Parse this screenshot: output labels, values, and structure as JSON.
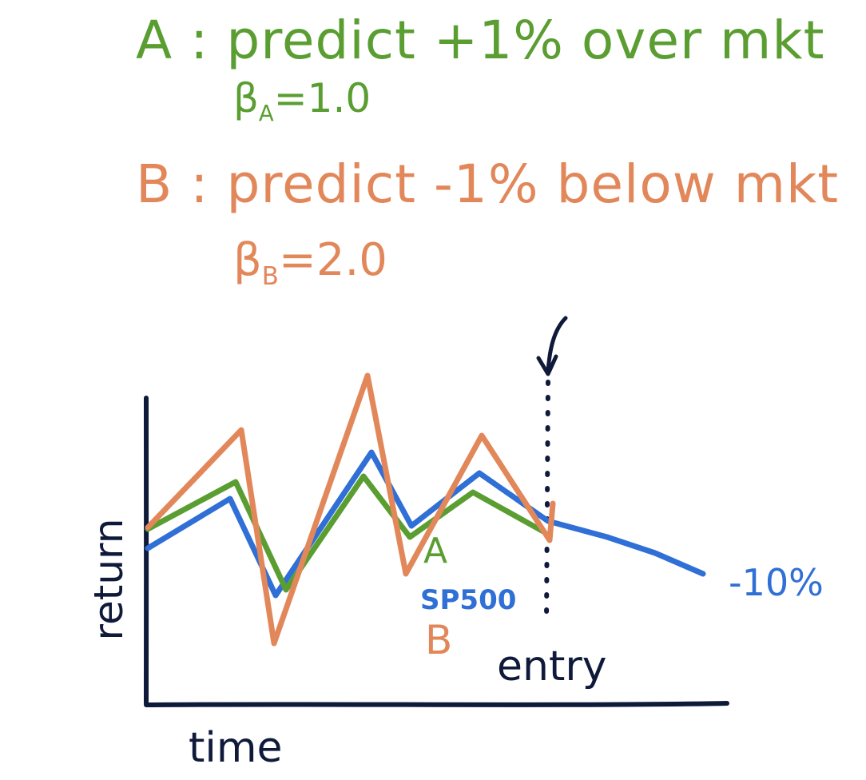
{
  "notes": {
    "a_prefix": "A",
    "a_title": " : predict +1% over mkt",
    "a_beta_symbol": "β",
    "a_beta_sub": "A",
    "a_beta_value": "=1.0",
    "b_prefix": "B",
    "b_title": " : predict -1% below mkt",
    "b_beta_symbol": "β",
    "b_beta_sub": "B",
    "b_beta_value": "=2.0"
  },
  "chart": {
    "xlabel": "time",
    "ylabel": "return",
    "label_a": "A",
    "label_sp500": "SP500",
    "label_b": "B",
    "entry_label": "entry",
    "future_return_label": "-10%"
  },
  "colors": {
    "stock_a": "#5a9e32",
    "stock_b": "#e2875a",
    "sp500": "#2f6fd6",
    "axes": "#0f1a3a"
  }
}
